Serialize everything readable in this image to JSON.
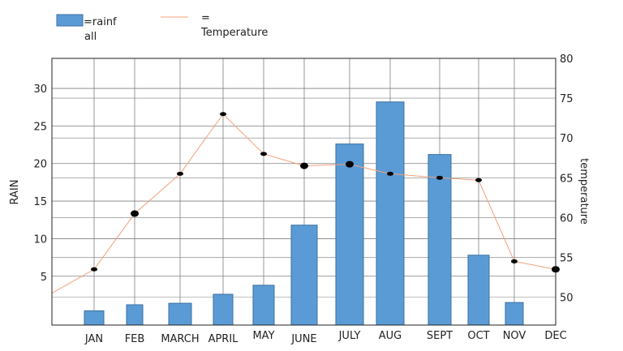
{
  "chart_data": {
    "type": "bar",
    "categories": [
      "JAN",
      "FEB",
      "MARCH",
      "APRIL",
      "MAY",
      "JUNE",
      "JULY",
      "AUG",
      "SEPT",
      "OCT",
      "NOV",
      "DEC"
    ],
    "series": [
      {
        "name": "=rainfall",
        "kind": "bar",
        "axis": "left",
        "values": [
          0.4,
          1.2,
          1.4,
          2.6,
          3.8,
          11.8,
          22.6,
          28.2,
          21.2,
          7.8,
          1.5,
          null
        ]
      },
      {
        "name": "= Temperature",
        "kind": "line",
        "axis": "right",
        "values": [
          53.5,
          60.5,
          65.5,
          73,
          68,
          66.5,
          66.7,
          65.5,
          65,
          64.7,
          54.5,
          53.5
        ]
      }
    ],
    "line_start_value": 50.5,
    "ylabel": "RAIN",
    "y2label": "temperature",
    "ylim": [
      -1.5,
      34
    ],
    "y2lim": [
      46.5,
      80
    ],
    "yticks": [
      5,
      10,
      15,
      20,
      25,
      30
    ],
    "y2ticks": [
      50,
      55,
      60,
      65,
      70,
      75,
      80
    ],
    "grid": true,
    "legend_position": "top-left",
    "colors": {
      "bar": "#5b9bd5",
      "bar_edge": "#3a6f9e",
      "line": "#f4a07a",
      "marker": "#000000",
      "grid": "#7f7f7f"
    }
  },
  "legend": {
    "rain_line1": "=rainf",
    "rain_line2": "all",
    "temp_line1": "=",
    "temp_line2": "Temperature"
  }
}
